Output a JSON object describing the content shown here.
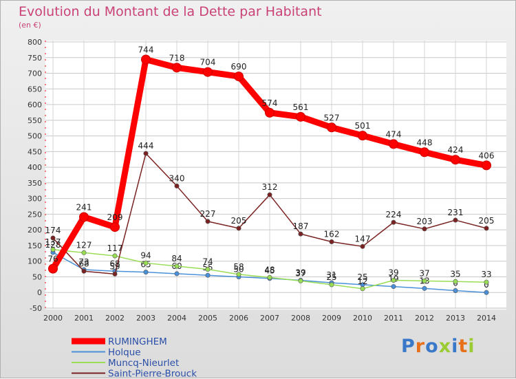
{
  "title": "Evolution du Montant de la Dette par Habitant",
  "subtitle": "(en €)",
  "logo": {
    "text": "Proxiti",
    "letter_colors": [
      "#3a78c9",
      "#e8701a",
      "#3a78c9",
      "#9bcc33",
      "#3a78c9",
      "#e8701a",
      "#9bcc33"
    ]
  },
  "chart_data": {
    "type": "line",
    "x": [
      "2000",
      "2001",
      "2002",
      "2003",
      "2004",
      "2005",
      "2006",
      "2007",
      "2008",
      "2009",
      "2010",
      "2011",
      "2012",
      "2013",
      "2014"
    ],
    "ylim": [
      -50,
      800
    ],
    "yticks": [
      -50,
      0,
      50,
      100,
      150,
      200,
      250,
      300,
      350,
      400,
      450,
      500,
      550,
      600,
      650,
      700,
      750,
      800
    ],
    "grid": true,
    "legend_position": "bottom-left",
    "series": [
      {
        "name": "RUMINGHEM",
        "color": "#ff0000",
        "style": "bold",
        "values": [
          76,
          241,
          209,
          744,
          718,
          704,
          690,
          574,
          561,
          527,
          501,
          474,
          448,
          424,
          406
        ],
        "labels": [
          "76",
          "241",
          "209",
          "744",
          "718",
          "704",
          "690",
          "574",
          "561",
          "527",
          "501",
          "474",
          "448",
          "424",
          "406"
        ]
      },
      {
        "name": "Holque",
        "color": "#4a90d9",
        "style": "thin",
        "values": [
          128,
          73,
          68,
          65,
          60,
          55,
          50,
          45,
          39,
          31,
          25,
          19,
          13,
          6,
          0
        ],
        "labels": [
          "128",
          "73",
          "68",
          "65",
          "60",
          "55",
          "50",
          "45",
          "39",
          "31",
          "25",
          "19",
          "13",
          "6",
          "0"
        ]
      },
      {
        "name": "Muncq-Nieurlet",
        "color": "#99dd55",
        "style": "thin",
        "values": [
          137,
          127,
          117,
          94,
          84,
          74,
          58,
          48,
          37,
          25,
          12,
          39,
          37,
          35,
          33
        ],
        "labels": [
          "137",
          "127",
          "117",
          "94",
          "84",
          "74",
          "58",
          "48",
          "37",
          "25",
          "12",
          "39",
          "37",
          "35",
          "33"
        ]
      },
      {
        "name": "Saint-Pierre-Brouck",
        "color": "#7a2222",
        "style": "thin",
        "values": [
          174,
          68,
          59,
          444,
          340,
          227,
          205,
          312,
          187,
          162,
          147,
          224,
          203,
          231,
          205
        ],
        "labels": [
          "174",
          "68",
          "59",
          "444",
          "340",
          "227",
          "205",
          "312",
          "187",
          "162",
          "147",
          "224",
          "203",
          "231",
          "205"
        ]
      }
    ]
  }
}
